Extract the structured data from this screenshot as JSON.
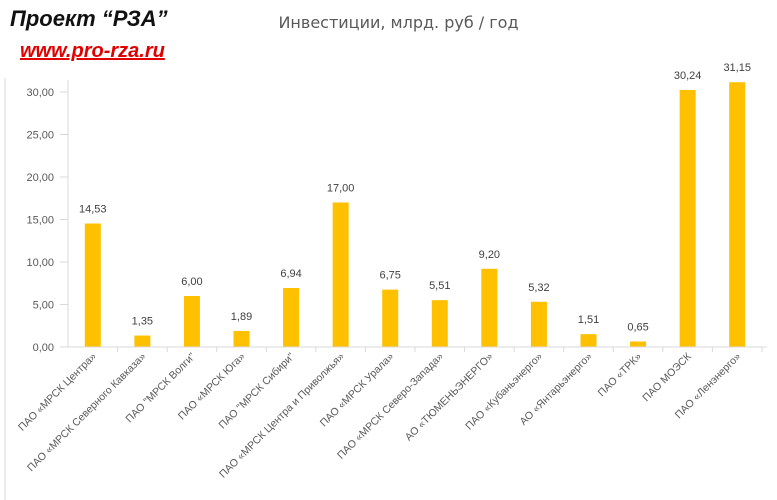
{
  "header": {
    "brand_title": "Проект “РЗА”",
    "brand_url": "www.pro-rza.ru"
  },
  "chart_data": {
    "type": "bar",
    "title": "Инвестиции, млрд. руб / год",
    "xlabel": "",
    "ylabel": "",
    "ylim": [
      0,
      30
    ],
    "yticks": [
      "0,00",
      "5,00",
      "10,00",
      "15,00",
      "20,00",
      "25,00",
      "30,00"
    ],
    "grid": false,
    "categories": [
      "ПАО «МРСК Центра»",
      "ПАО «МРСК Северного Кавказа»",
      "ПАО \"МРСК Волги\"",
      "ПАО «МРСК Юга»",
      "ПАО \"МРСК Сибири\"",
      "ПАО «МРСК Центра и Приволжья»",
      "ПАО «МРСК Урала»",
      "ПАО «МРСК Северо-Запада»",
      "АО «ТЮМЕНЬЭНЕРГО»",
      "ПАО «Кубаньэнерго»",
      "АО «Янтарьэнерго»",
      "ПАО «ТРК»",
      "ПАО МОЭСК",
      "ПАО «Ленэнерго»"
    ],
    "values": [
      14.53,
      1.35,
      6.0,
      1.89,
      6.94,
      17.0,
      6.75,
      5.51,
      9.2,
      5.32,
      1.51,
      0.65,
      30.24,
      31.15
    ],
    "data_labels": [
      "14,53",
      "1,35",
      "6,00",
      "1,89",
      "6,94",
      "17,00",
      "6,75",
      "5,51",
      "9,20",
      "5,32",
      "1,51",
      "0,65",
      "30,24",
      "31,15"
    ],
    "bar_color": "#FFC000",
    "axis_color": "#D9D9D9",
    "text_color": "#595959"
  }
}
